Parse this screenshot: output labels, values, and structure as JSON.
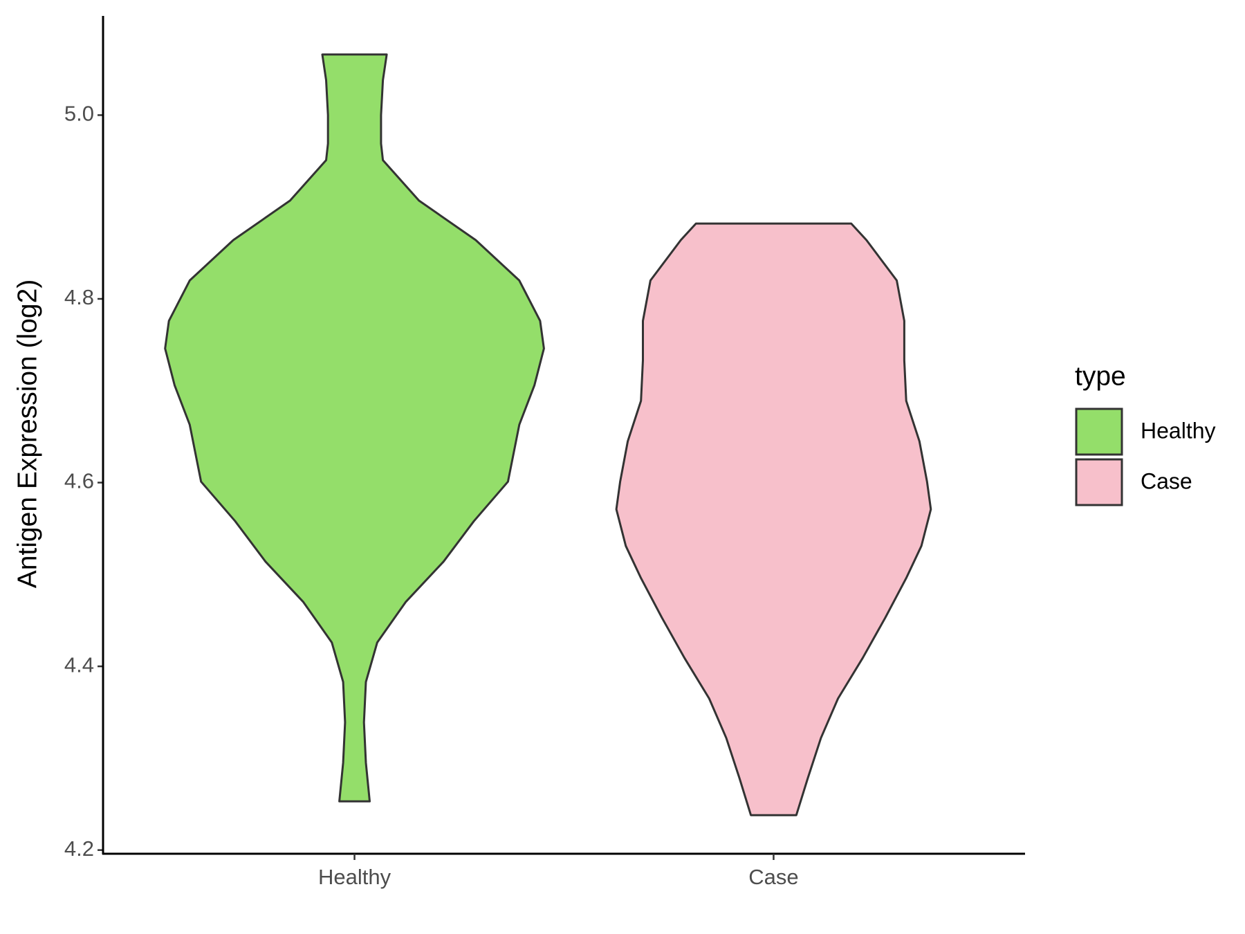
{
  "chart_data": {
    "type": "violin",
    "y_label": "Antigen Expression (log2)",
    "categories": [
      "Healthy",
      "Case"
    ],
    "legend_title": "type",
    "series": [
      {
        "name": "Healthy",
        "color": "#94de6a",
        "y": [
          5.066,
          5.038,
          5.0,
          4.969,
          4.951,
          4.907,
          4.864,
          4.82,
          4.776,
          4.746,
          4.706,
          4.663,
          4.601,
          4.558,
          4.514,
          4.47,
          4.426,
          4.383,
          4.339,
          4.295,
          4.253
        ],
        "widths": [
          0.17,
          0.15,
          0.14,
          0.14,
          0.15,
          0.34,
          0.64,
          0.87,
          0.98,
          1.0,
          0.95,
          0.87,
          0.81,
          0.63,
          0.47,
          0.27,
          0.12,
          0.06,
          0.05,
          0.06,
          0.08
        ]
      },
      {
        "name": "Case",
        "color": "#f7c0cb",
        "y": [
          4.882,
          4.864,
          4.82,
          4.776,
          4.733,
          4.689,
          4.645,
          4.601,
          4.571,
          4.531,
          4.496,
          4.453,
          4.409,
          4.365,
          4.322,
          4.278,
          4.238
        ],
        "widths": [
          0.41,
          0.49,
          0.65,
          0.69,
          0.69,
          0.7,
          0.77,
          0.81,
          0.83,
          0.78,
          0.7,
          0.59,
          0.47,
          0.34,
          0.25,
          0.18,
          0.12
        ]
      }
    ],
    "ylim": [
      4.196,
      5.108
    ],
    "yticks": [
      4.2,
      4.4,
      4.6,
      4.8,
      {
        "value": 5.0,
        "label": "5.0"
      }
    ],
    "legend_position": "right"
  }
}
